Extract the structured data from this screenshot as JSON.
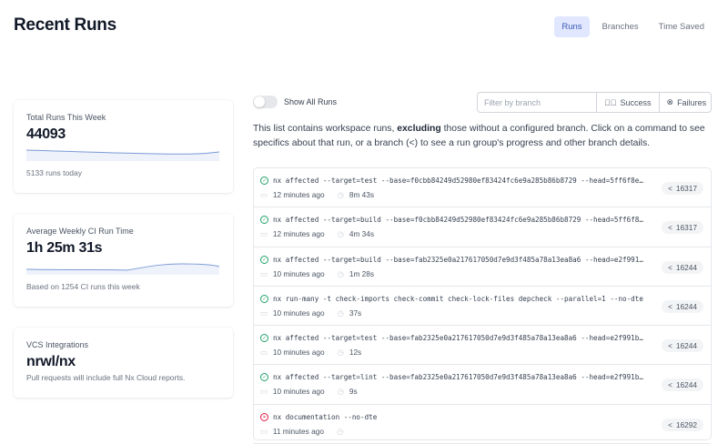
{
  "header": {
    "title": "Recent Runs",
    "tabs": [
      {
        "label": "Runs",
        "active": true
      },
      {
        "label": "Branches"
      },
      {
        "label": "Time Saved"
      }
    ]
  },
  "cards": [
    {
      "label": "Total Runs This Week",
      "value": "44093",
      "sub": "5133 runs today"
    },
    {
      "label": "Average Weekly CI Run Time",
      "value": "1h 25m 31s",
      "sub": "Based on 1254 CI runs this week"
    },
    {
      "label": "VCS Integrations",
      "value": "nrwl/nx",
      "sub": "Pull requests will include full Nx Cloud reports."
    }
  ],
  "controls": {
    "show_all_label": "Show All Runs",
    "show_all_on": false,
    "filter_placeholder": "Filter by branch",
    "success_label": "Success",
    "failures_label": "Failures"
  },
  "description": {
    "part1": "This list contains workspace runs, ",
    "bold": "excluding",
    "part2": " those without a configured branch. Click on a command to see specifics about that run, or a branch (",
    "part3": ") to see a run group's progress and other branch details."
  },
  "colors": {
    "success": "#22a06b",
    "failure": "#e11d48",
    "accent": "#3b5bb5"
  },
  "runs": [
    {
      "status": "success",
      "command": "nx affected --target=test --base=f0cbb84249d52980ef83424fc6e9a285b86b8729 --head=5ff6f8e…",
      "time": "12 minutes ago",
      "duration": "8m 43s",
      "branch": "16317"
    },
    {
      "status": "success",
      "command": "nx affected --target=build --base=f0cbb84249d52980ef83424fc6e9a285b86b8729 --head=5ff6f8…",
      "time": "12 minutes ago",
      "duration": "4m 34s",
      "branch": "16317"
    },
    {
      "status": "success",
      "command": "nx affected --target=build --base=fab2325e0a217617050d7e9d3f485a78a13ea8a6 --head=e2f991…",
      "time": "10 minutes ago",
      "duration": "1m 28s",
      "branch": "16244"
    },
    {
      "status": "success",
      "command": "nx run-many -t check-imports check-commit check-lock-files depcheck --parallel=1 --no-dte",
      "time": "10 minutes ago",
      "duration": "37s",
      "branch": "16244"
    },
    {
      "status": "success",
      "command": "nx affected --target=test --base=fab2325e0a217617050d7e9d3f485a78a13ea8a6 --head=e2f991b…",
      "time": "10 minutes ago",
      "duration": "12s",
      "branch": "16244"
    },
    {
      "status": "success",
      "command": "nx affected --target=lint --base=fab2325e0a217617050d7e9d3f485a78a13ea8a6 --head=e2f991b…",
      "time": "10 minutes ago",
      "duration": "9s",
      "branch": "16244"
    },
    {
      "status": "failure",
      "command": "nx documentation --no-dte",
      "time": "11 minutes ago",
      "duration": "",
      "branch": "16292"
    }
  ]
}
